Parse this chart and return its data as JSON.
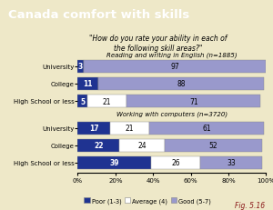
{
  "title": "Canada comfort with skills",
  "subtitle": "\"How do you rate your ability in each of\nthe following skill areas?\"",
  "title_bg": "#8B1A1A",
  "bg_color": "#EEE8C8",
  "plot_bg": "#EEE8C8",
  "fig_label": "Fig. 5.16",
  "section1_label": "Reading and writing in English (n=1885)",
  "section2_label": "Working with computers (n=3720)",
  "categories": [
    "University",
    "College",
    "High School or less"
  ],
  "reading": {
    "poor": [
      3,
      11,
      5
    ],
    "average": [
      0,
      0,
      21
    ],
    "good": [
      97,
      88,
      71
    ]
  },
  "computers": {
    "poor": [
      17,
      22,
      39
    ],
    "average": [
      21,
      24,
      26
    ],
    "good": [
      61,
      52,
      33
    ]
  },
  "color_poor": "#1F3391",
  "color_average": "#FFFFFF",
  "color_good": "#9999CC",
  "bar_height": 0.55,
  "legend_labels": [
    "Poor (1-3)",
    "Average (4)",
    "Good (5-7)"
  ]
}
